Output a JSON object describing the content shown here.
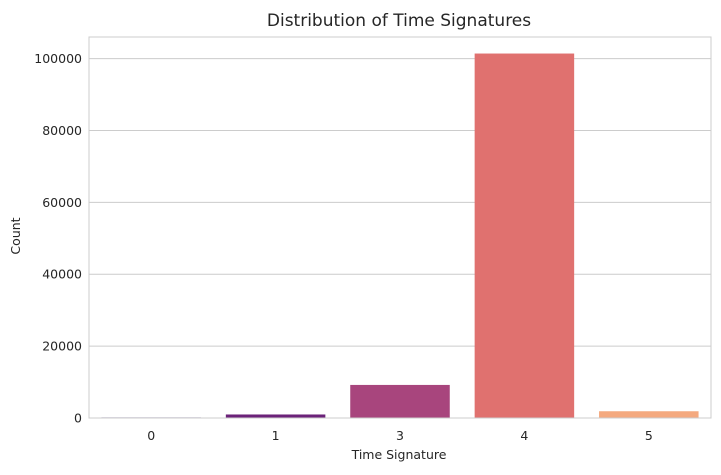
{
  "chart_data": {
    "type": "bar",
    "title": "Distribution of Time Signatures",
    "xlabel": "Time Signature",
    "ylabel": "Count",
    "categories": [
      "0",
      "1",
      "3",
      "4",
      "5"
    ],
    "values": [
      160,
      980,
      9200,
      101400,
      1880
    ],
    "colors": [
      "#3b0f70",
      "#6b2279",
      "#a8457d",
      "#e0716f",
      "#f4a97f"
    ],
    "ylim": [
      0,
      106000
    ],
    "yticks": [
      0,
      20000,
      40000,
      60000,
      80000,
      100000
    ],
    "grid": "horizontal",
    "background": "#ffffff",
    "grid_color": "#cccccc"
  }
}
